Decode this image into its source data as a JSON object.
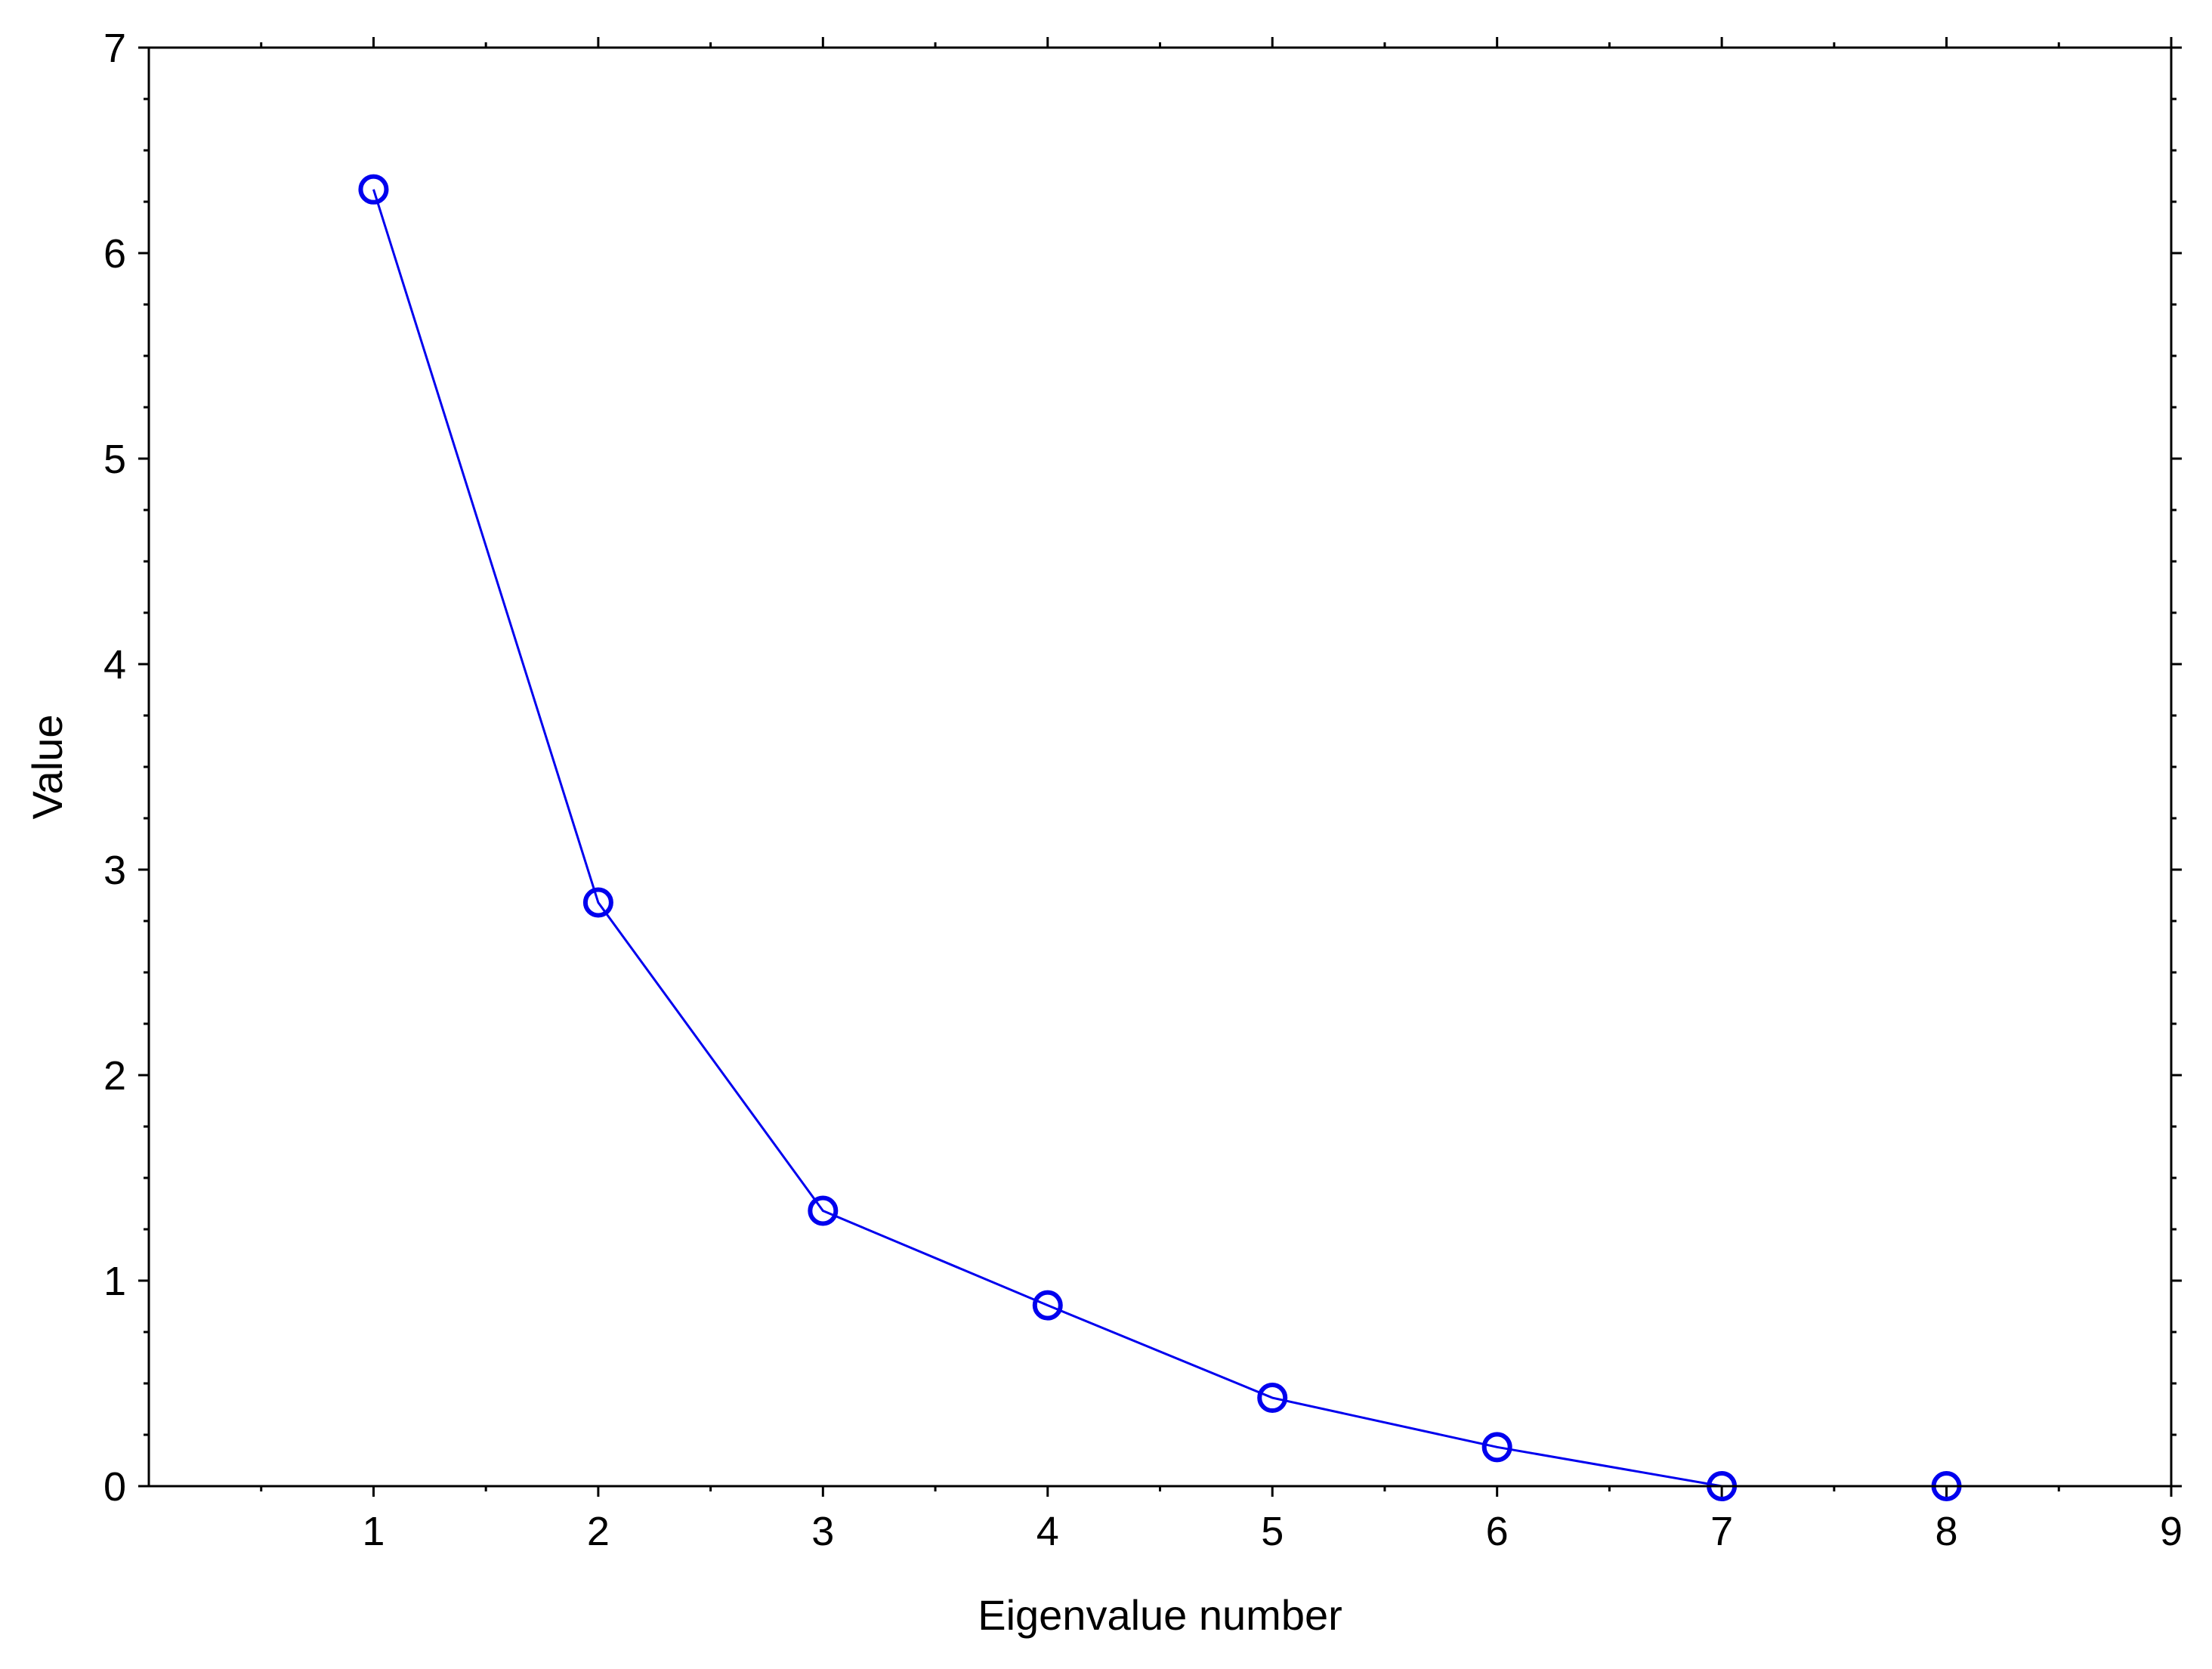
{
  "chart_data": {
    "type": "line",
    "title": "",
    "xlabel": "Eigenvalue number",
    "ylabel": "Value",
    "xlim": [
      0,
      9
    ],
    "ylim": [
      0,
      7
    ],
    "xticks": [
      1,
      2,
      3,
      4,
      5,
      6,
      7,
      8,
      9
    ],
    "yticks": [
      0,
      1,
      2,
      3,
      4,
      5,
      6,
      7
    ],
    "grid": false,
    "legend": "none",
    "series": [
      {
        "x": [
          1,
          2,
          3,
          4,
          5,
          6,
          7,
          8
        ],
        "y": [
          6.31,
          2.84,
          1.34,
          0.88,
          0.43,
          0.19,
          0.0,
          0.0
        ],
        "color": "#0000ee",
        "marker": "open-circle"
      }
    ]
  }
}
